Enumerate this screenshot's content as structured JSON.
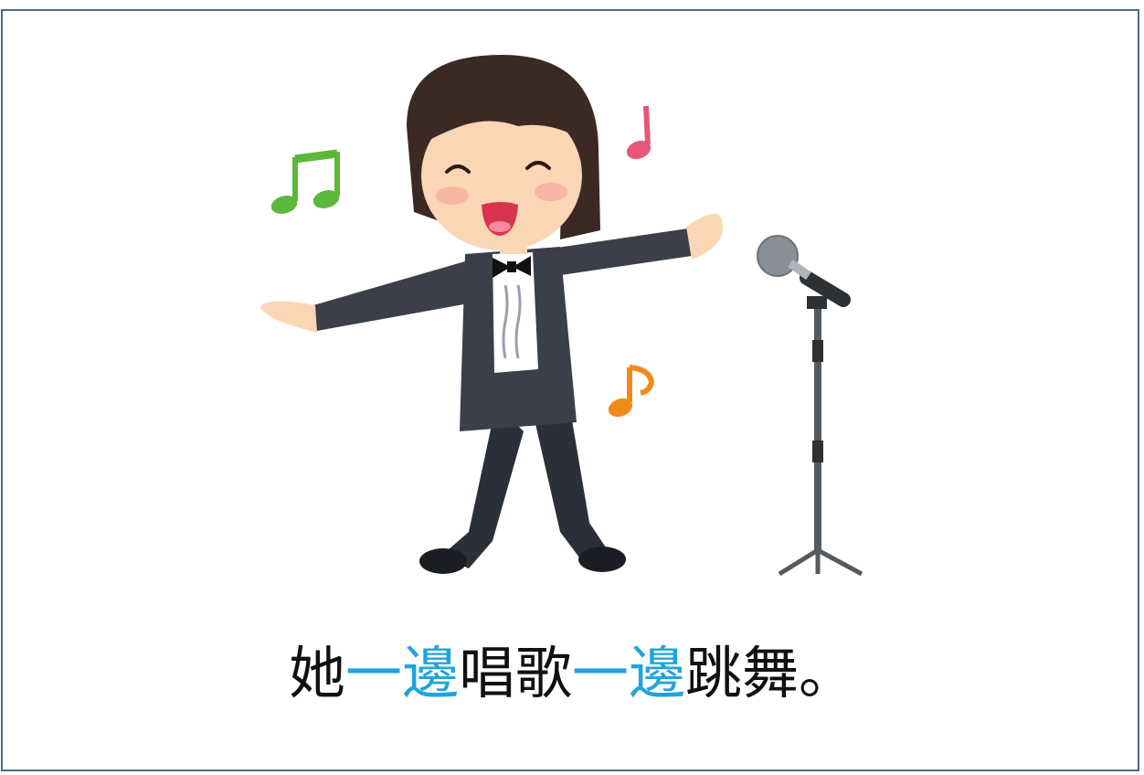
{
  "illustration": {
    "subject_icon": "singing-dancing-performer-icon",
    "note_icons": [
      "green-double-note-icon",
      "pink-note-icon",
      "orange-note-icon"
    ],
    "microphone_icon": "microphone-stand-icon"
  },
  "caption": {
    "segments": [
      {
        "text": "她",
        "highlight": false
      },
      {
        "text": "一邊",
        "highlight": true
      },
      {
        "text": "唱歌",
        "highlight": false
      },
      {
        "text": "一邊",
        "highlight": true
      },
      {
        "text": "跳舞",
        "highlight": false
      },
      {
        "text": "。",
        "highlight": false
      }
    ]
  },
  "colors": {
    "border": "#4a6b8a",
    "highlight": "#1ea5dc",
    "text": "#111111",
    "note_green": "#5bb83a",
    "note_pink": "#e8567c",
    "note_orange": "#f08a1c"
  }
}
